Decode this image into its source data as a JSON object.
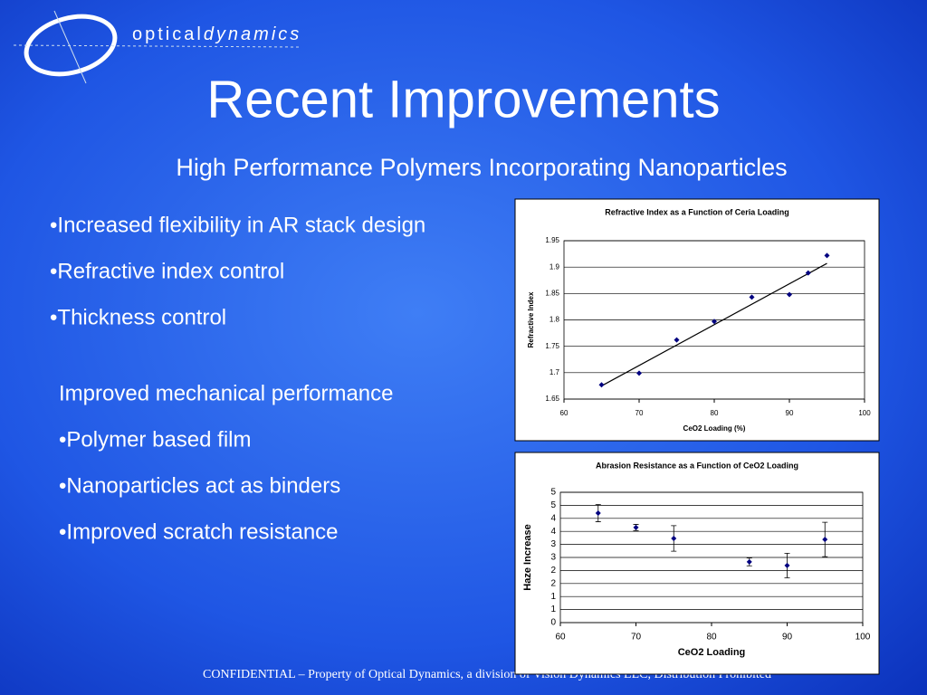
{
  "header": {
    "logo": "optical",
    "logo_italic": "dynamics",
    "title": "Recent Improvements",
    "subtitle": "High Performance Polymers Incorporating Nanoparticles"
  },
  "bullets_1": [
    "•Increased flexibility in AR stack design",
    "•Refractive index control",
    "•Thickness control"
  ],
  "section_2": {
    "heading": "Improved mechanical performance",
    "bullets": [
      "•Polymer based film",
      "•Nanoparticles act as binders",
      "•Improved scratch resistance"
    ]
  },
  "footer": "CONFIDENTIAL – Property of Optical Dynamics, a division of Vision Dynamics LLC, Distribution Prohibited",
  "chart_data": [
    {
      "type": "scatter",
      "title": "Refractive Index as a Function of Ceria Loading",
      "x_label": "CeO2 Loading (%)",
      "y_label": "Refractive Index",
      "xlim": [
        60,
        100
      ],
      "xticks": [
        60,
        70,
        80,
        90,
        100
      ],
      "ylim": [
        1.65,
        1.95
      ],
      "yticks": [
        1.65,
        1.7,
        1.75,
        1.8,
        1.85,
        1.9,
        1.95
      ],
      "grid": true,
      "series": [
        {
          "color": "#000080",
          "x": [
            65,
            70,
            75,
            80,
            85,
            90,
            92.5,
            95
          ],
          "values": [
            1.677,
            1.699,
            1.762,
            1.797,
            1.843,
            1.848,
            1.889,
            1.922
          ]
        }
      ],
      "trendline": {
        "color": "#000000",
        "x": [
          65,
          95
        ],
        "y": [
          1.675,
          1.907
        ]
      }
    },
    {
      "type": "scatter",
      "title": "Abrasion Resistance as a Function of CeO2 Loading",
      "x_label": "CeO2 Loading",
      "y_label": "Haze Increase",
      "xlim": [
        60,
        100
      ],
      "xticks": [
        60,
        70,
        80,
        90,
        100
      ],
      "ylim": [
        0,
        5
      ],
      "yticks": [
        0,
        {
          "value": 0.5,
          "label": "1"
        },
        1,
        {
          "value": 1.5,
          "label": "2"
        },
        2,
        {
          "value": 2.5,
          "label": "3"
        },
        3,
        {
          "value": 3.5,
          "label": "4"
        },
        4,
        {
          "value": 4.5,
          "label": "5"
        },
        5
      ],
      "grid": true,
      "series": [
        {
          "color": "#000080",
          "x": [
            65,
            70,
            75,
            85,
            90,
            95
          ],
          "values": [
            4.2,
            3.65,
            3.23,
            2.33,
            2.19,
            3.19
          ],
          "errors": [
            0.33,
            0.12,
            0.49,
            0.15,
            0.47,
            0.66
          ]
        }
      ]
    }
  ]
}
